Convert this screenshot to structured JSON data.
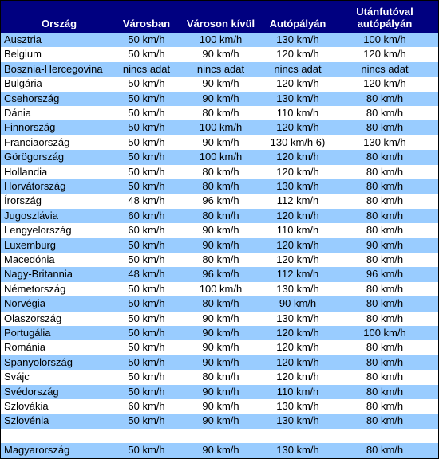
{
  "headers": [
    "Ország",
    "Városban",
    "Városon kívül",
    "Autópályán",
    "Utánfutóval\nautópályán"
  ],
  "rows": [
    [
      "Ausztria",
      "50 km/h",
      "100 km/h",
      "130 km/h",
      "100 km/h"
    ],
    [
      "Belgium",
      "50 km/h",
      "90 km/h",
      "120 km/h",
      "120 km/h"
    ],
    [
      "Bosznia-Hercegovina",
      "nincs adat",
      "nincs adat",
      "nincs adat",
      "nincs adat"
    ],
    [
      "Bulgária",
      "50 km/h",
      "90 km/h",
      "120 km/h",
      "120 km/h"
    ],
    [
      "Csehország",
      "50 km/h",
      "90 km/h",
      "130 km/h",
      "80 km/h"
    ],
    [
      "Dánia",
      "50 km/h",
      "80 km/h",
      "110 km/h",
      "80 km/h"
    ],
    [
      "Finnország",
      "50 km/h",
      "100 km/h",
      "120 km/h",
      "80 km/h"
    ],
    [
      "Franciaország",
      "50 km/h",
      "90 km/h",
      "130 km/h 6)",
      "130 km/h"
    ],
    [
      "Görögország",
      "50 km/h",
      "100 km/h",
      "120 km/h",
      "80 km/h"
    ],
    [
      "Hollandia",
      "50 km/h",
      "80 km/h",
      "120 km/h",
      "80 km/h"
    ],
    [
      "Horvátország",
      "50 km/h",
      "80 km/h",
      "130 km/h",
      "80 km/h"
    ],
    [
      "Írország",
      "48 km/h",
      "96 km/h",
      "112 km/h",
      "80 km/h"
    ],
    [
      "Jugoszlávia",
      "60 km/h",
      "80 km/h",
      "120 km/h",
      "80 km/h"
    ],
    [
      "Lengyelország",
      "60 km/h",
      "90 km/h",
      "110 km/h",
      "80 km/h"
    ],
    [
      "Luxemburg",
      "50 km/h",
      "90 km/h",
      "120 km/h",
      "90 km/h"
    ],
    [
      "Macedónia",
      "50 km/h",
      "80 km/h",
      "120 km/h",
      "80 km/h"
    ],
    [
      "Nagy-Britannia",
      "48 km/h",
      "96 km/h",
      "112 km/h",
      "96 km/h"
    ],
    [
      "Németország",
      "50 km/h",
      "100 km/h",
      "130 km/h",
      "80 km/h"
    ],
    [
      "Norvégia",
      "50 km/h",
      "80 km/h",
      "90 km/h",
      "80 km/h"
    ],
    [
      "Olaszország",
      "50 km/h",
      "90 km/h",
      "130 km/h",
      "80 km/h"
    ],
    [
      "Portugália",
      "50 km/h",
      "90 km/h",
      "120 km/h",
      "100 km/h"
    ],
    [
      "Románia",
      "50 km/h",
      "90 km/h",
      "120 km/h",
      "80 km/h"
    ],
    [
      "Spanyolország",
      "50 km/h",
      "90 km/h",
      "120 km/h",
      "80 km/h"
    ],
    [
      "Svájc",
      "50 km/h",
      "80 km/h",
      "120 km/h",
      "80 km/h"
    ],
    [
      "Svédország",
      "50 km/h",
      "90 km/h",
      "110 km/h",
      "80 km/h"
    ],
    [
      "Szlovákia",
      "60 km/h",
      "90 km/h",
      "130 km/h",
      "80 km/h"
    ],
    [
      "Szlovénia",
      "50 km/h",
      "90 km/h",
      "130 km/h",
      "80 km/h"
    ],
    [
      "",
      "",
      "",
      "",
      ""
    ],
    [
      "Magyarország",
      "50 km/h",
      "90 km/h",
      "130 km/h",
      "80 km/h"
    ]
  ],
  "colors": {
    "header_bg": "#000080",
    "header_text": "#ffffff",
    "band": "#99ccff",
    "plain": "#ffffff"
  }
}
